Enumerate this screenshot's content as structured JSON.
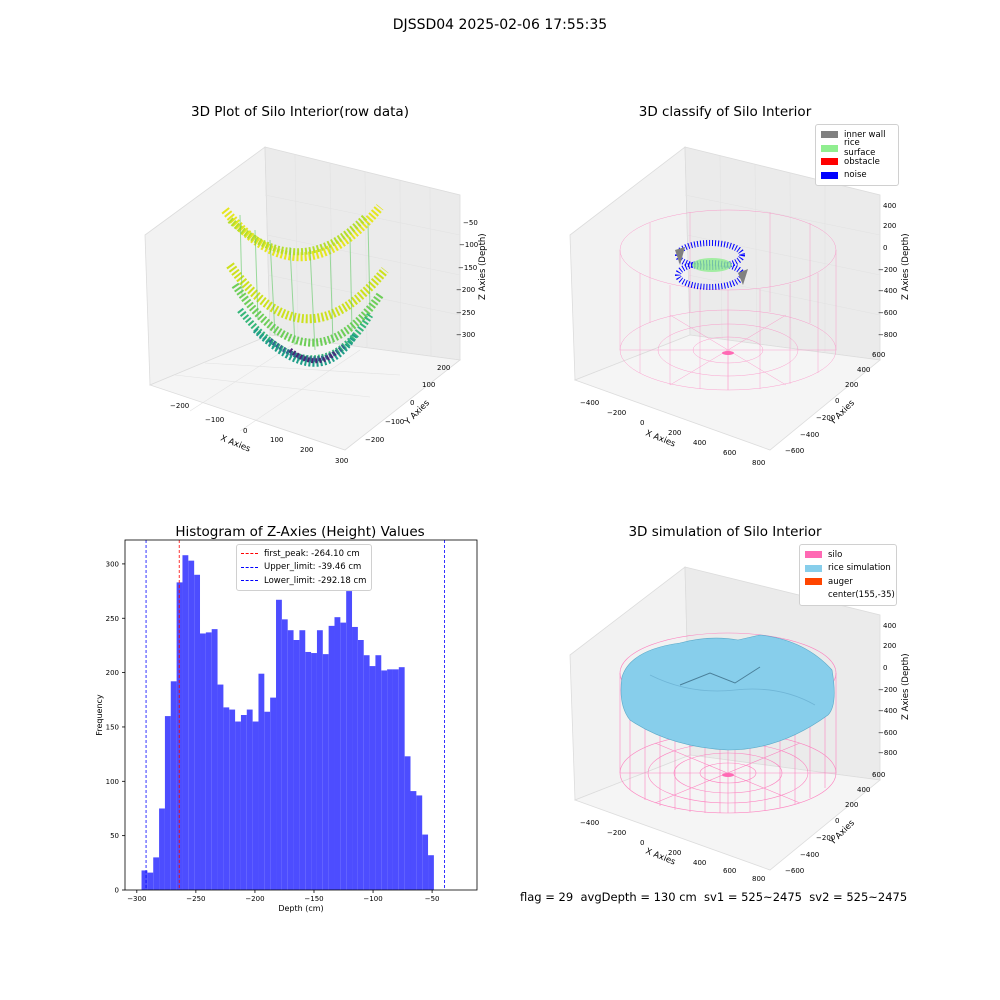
{
  "suptitle": "DJSSD04 2025-02-06 17:55:35",
  "footer": "flag = 29  avgDepth = 130 cm  sv1 = 525~2475  sv2 = 525~2475",
  "colors": {
    "hist_bar": "#4d4dff",
    "first_peak_line": "#ff0000",
    "limit_line": "#0000ff",
    "inner_wall": "#808080",
    "rice_surface": "#90ee90",
    "obstacle": "#ff0000",
    "noise": "#0000ff",
    "silo": "#ff69b4",
    "rice_simulation": "#87ceeb",
    "auger": "#ff4500"
  },
  "panels": {
    "raw": {
      "title": "3D Plot of Silo Interior(row data)",
      "xlabel": "X Axies",
      "ylabel": "Y Axies",
      "zlabel": "Z Axies (Depth)",
      "xticks": [
        "−200",
        "−100",
        "0",
        "100",
        "200",
        "300"
      ],
      "yticks": [
        "−200",
        "−100",
        "0",
        "100",
        "200"
      ],
      "zticks": [
        "−50",
        "−100",
        "−150",
        "−200",
        "−250",
        "−300"
      ],
      "colormap": "viridis"
    },
    "classify": {
      "title": "3D classify of Silo Interior",
      "xlabel": "X Axies",
      "ylabel": "Y Axies",
      "zlabel": "Z Axies (Depth)",
      "xticks": [
        "−400",
        "−200",
        "0",
        "200",
        "400",
        "600",
        "800"
      ],
      "yticks": [
        "−600",
        "−400",
        "−200",
        "0",
        "200",
        "400",
        "600"
      ],
      "zticks": [
        "400",
        "200",
        "0",
        "−200",
        "−400",
        "−600",
        "−800"
      ],
      "legend": [
        {
          "label": "inner wall",
          "color": "#808080"
        },
        {
          "label": "rice surface",
          "color": "#90ee90"
        },
        {
          "label": "obstacle",
          "color": "#ff0000"
        },
        {
          "label": "noise",
          "color": "#0000ff"
        }
      ]
    },
    "simulation": {
      "title": "3D simulation of Silo Interior",
      "xlabel": "X Axies",
      "ylabel": "Y Axies",
      "zlabel": "Z Axies (Depth)",
      "xticks": [
        "−400",
        "−200",
        "0",
        "200",
        "400",
        "600",
        "800"
      ],
      "yticks": [
        "−600",
        "−400",
        "−200",
        "0",
        "200",
        "400",
        "600"
      ],
      "zticks": [
        "400",
        "200",
        "0",
        "−200",
        "−400",
        "−600",
        "−800"
      ],
      "legend": [
        {
          "label": "silo",
          "color": "#ff69b4"
        },
        {
          "label": "rice simulation",
          "color": "#87ceeb"
        },
        {
          "label": "auger",
          "color": "#ff4500"
        },
        {
          "label": "center(155,-35)",
          "color": ""
        }
      ]
    }
  },
  "chart_data": [
    {
      "type": "bar",
      "title": "Histogram of Z-Axies (Height) Values",
      "xlabel": "Depth (cm)",
      "ylabel": "Frequency",
      "xlim": [
        -310,
        -12
      ],
      "ylim": [
        0,
        322
      ],
      "xticks": [
        -300,
        -250,
        -200,
        -150,
        -100,
        -50
      ],
      "yticks": [
        0,
        50,
        100,
        150,
        200,
        250,
        300
      ],
      "bin_start": -296,
      "bin_width": 4.95,
      "values": [
        18,
        16,
        30,
        75,
        160,
        192,
        283,
        308,
        303,
        290,
        236,
        237,
        240,
        189,
        168,
        166,
        155,
        161,
        166,
        155,
        199,
        164,
        177,
        267,
        249,
        239,
        230,
        239,
        219,
        218,
        239,
        217,
        243,
        251,
        246,
        275,
        242,
        230,
        216,
        206,
        216,
        202,
        203,
        203,
        205,
        123,
        91,
        87,
        51,
        32
      ],
      "vlines": [
        {
          "label": "first_peak: -264.10 cm",
          "x": -264.1,
          "color": "#ff0000"
        },
        {
          "label": "Upper_limit: -39.46 cm",
          "x": -39.46,
          "color": "#0000ff"
        },
        {
          "label": "Lower_limit: -292.18 cm",
          "x": -292.18,
          "color": "#0000ff"
        }
      ],
      "grid": false,
      "legend_position": "upper-center"
    }
  ]
}
